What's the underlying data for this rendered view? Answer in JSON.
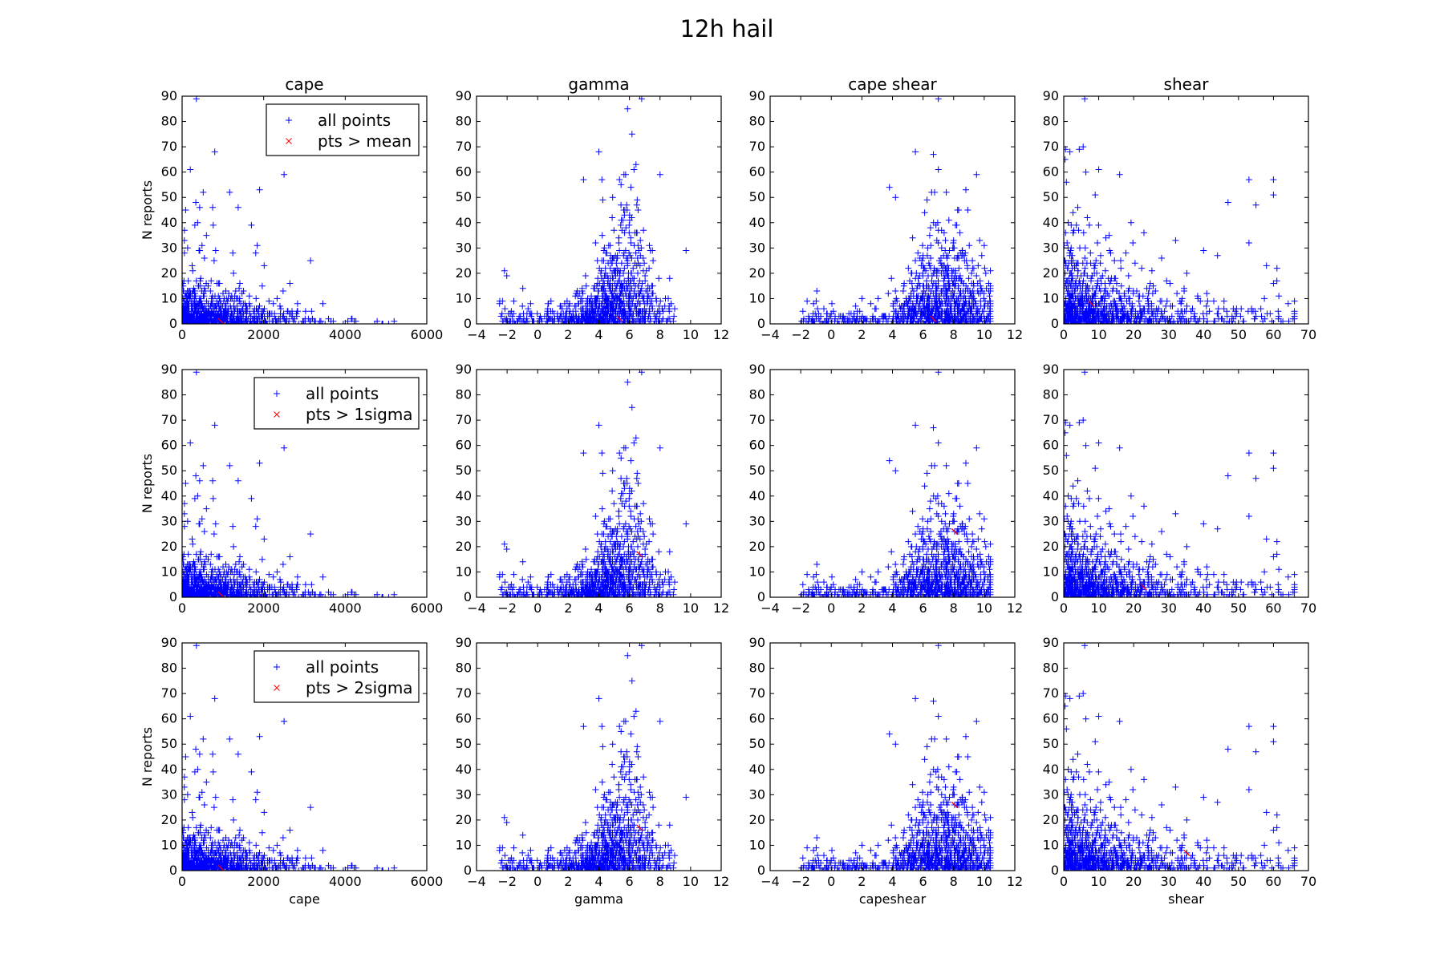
{
  "figure": {
    "title": "12h hail"
  },
  "colors": {
    "all_points": "#0000ff",
    "above_threshold": "#ff0000",
    "axis": "#000000",
    "background": "#ffffff"
  },
  "chart_data": {
    "type": "scatter",
    "rows": 3,
    "cols": 4,
    "ylabel": "N reports",
    "ylim": [
      0,
      90
    ],
    "yticks": [
      "0",
      "10",
      "20",
      "30",
      "40",
      "50",
      "60",
      "70",
      "80",
      "90"
    ],
    "marker_all": "+",
    "marker_above": "x",
    "columns": [
      {
        "title": "cape",
        "xlabel": "cape",
        "xlim": [
          0,
          6000
        ],
        "xticks": [
          "0",
          "2000",
          "4000",
          "6000"
        ]
      },
      {
        "title": "gamma",
        "xlabel": "gamma",
        "xlim": [
          -4,
          12
        ],
        "xticks": [
          "−4",
          "−2",
          "0",
          "2",
          "4",
          "6",
          "8",
          "10",
          "12"
        ]
      },
      {
        "title": "cape shear",
        "xlabel": "capeshear",
        "xlim": [
          -4,
          12
        ],
        "xticks": [
          "−4",
          "−2",
          "0",
          "2",
          "4",
          "6",
          "8",
          "10",
          "12"
        ]
      },
      {
        "title": "shear",
        "xlabel": "shear",
        "xlim": [
          0,
          70
        ],
        "xticks": [
          "0",
          "10",
          "20",
          "30",
          "40",
          "50",
          "60",
          "70"
        ]
      }
    ],
    "legends": [
      {
        "all": "all points",
        "above": "pts > mean"
      },
      {
        "all": "all points",
        "above": "pts > 1sigma"
      },
      {
        "all": "all points",
        "above": "pts > 2sigma"
      }
    ],
    "highlighted_points": {
      "cape": [
        [
          350,
          89
        ],
        [
          800,
          68
        ],
        [
          200,
          61
        ],
        [
          2500,
          59
        ],
        [
          1900,
          53
        ],
        [
          750,
          46
        ],
        [
          1700,
          39
        ],
        [
          3150,
          25
        ],
        [
          4900,
          0
        ]
      ],
      "gamma": [
        [
          6.8,
          89
        ],
        [
          4.0,
          68
        ],
        [
          6.3,
          61
        ],
        [
          8.0,
          59
        ],
        [
          3.0,
          57
        ],
        [
          4.2,
          57
        ],
        [
          6.1,
          54
        ],
        [
          4.9,
          50
        ],
        [
          9.7,
          29
        ]
      ],
      "capeshear": [
        [
          7.0,
          89
        ],
        [
          5.5,
          68
        ],
        [
          7.0,
          61
        ],
        [
          9.5,
          59
        ],
        [
          8.8,
          53
        ],
        [
          4.2,
          50
        ],
        [
          3.8,
          54
        ],
        [
          10.0,
          31
        ]
      ],
      "shear": [
        [
          6,
          89
        ],
        [
          0.5,
          69
        ],
        [
          10,
          61
        ],
        [
          16,
          59
        ],
        [
          53,
          57
        ],
        [
          60,
          57
        ],
        [
          60,
          51
        ],
        [
          55,
          47
        ],
        [
          47,
          48
        ],
        [
          53,
          32
        ],
        [
          58,
          23
        ],
        [
          61,
          22
        ],
        [
          60,
          16
        ],
        [
          40,
          29
        ],
        [
          32,
          33
        ],
        [
          44,
          27
        ]
      ]
    }
  }
}
